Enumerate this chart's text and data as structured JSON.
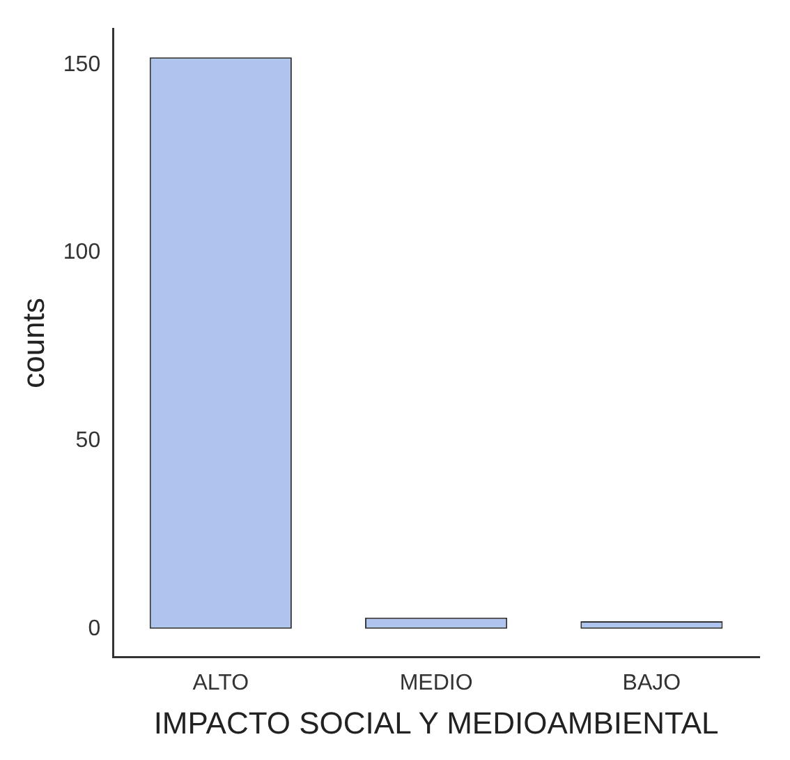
{
  "chart_data": {
    "type": "bar",
    "xlabel": "IMPACTO SOCIAL Y MEDIOAMBIENTAL",
    "ylabel": "counts",
    "categories": [
      "ALTO",
      "MEDIO",
      "BAJO"
    ],
    "values": [
      152,
      3,
      2
    ],
    "color": "#aec4ee",
    "ylim": [
      -7.6,
      159.6
    ],
    "yticks": [
      0,
      50,
      100,
      150
    ],
    "grid": false,
    "legend": false
  }
}
